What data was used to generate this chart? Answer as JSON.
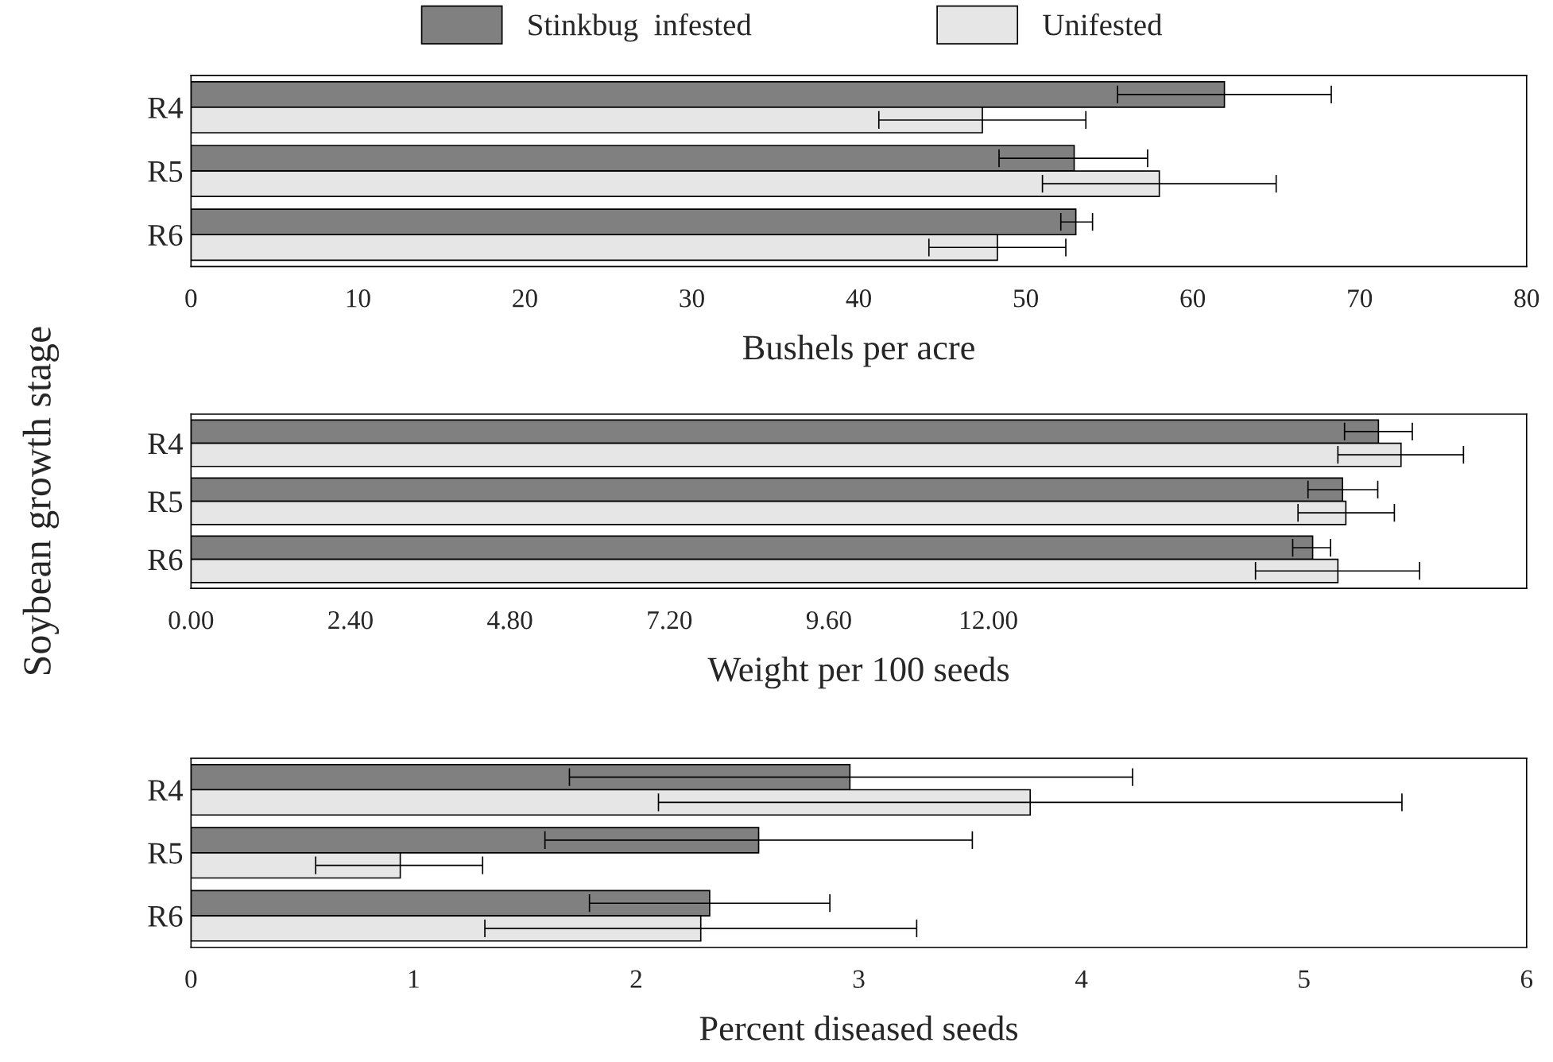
{
  "chart_data": [
    {
      "type": "bar",
      "orientation": "horizontal",
      "categories": [
        "R4",
        "R5",
        "R6"
      ],
      "xlabel": "Bushels per acre",
      "legend": "top",
      "xlim": [
        0,
        80
      ],
      "xticks": [
        0,
        10,
        20,
        30,
        40,
        50,
        60,
        70,
        80
      ],
      "series": [
        {
          "name": "Stinkbug  infested",
          "color": "#808080",
          "values": [
            61.9,
            52.9,
            53.0
          ],
          "errors": [
            [
              55.5,
              68.3
            ],
            [
              48.4,
              57.3
            ],
            [
              52.1,
              54.0
            ]
          ]
        },
        {
          "name": "Unifested",
          "color": "#e6e6e6",
          "values": [
            47.4,
            58.0,
            48.3
          ],
          "errors": [
            [
              41.2,
              53.6
            ],
            [
              51.0,
              65.0
            ],
            [
              44.2,
              52.4
            ]
          ]
        }
      ]
    },
    {
      "type": "bar",
      "orientation": "horizontal",
      "categories": [
        "R4",
        "R5",
        "R6"
      ],
      "xlabel": "Weight per 100 seeds",
      "ylabel": "Soybean growth stage",
      "xlim": [
        0,
        20.1
      ],
      "xticks": [
        {
          "value": 0,
          "label": "0.00"
        },
        {
          "value": 2.4,
          "label": "2.40"
        },
        {
          "value": 4.8,
          "label": "4.80"
        },
        {
          "value": 7.2,
          "label": "7.20"
        },
        {
          "value": 9.6,
          "label": "9.60"
        },
        {
          "value": 12,
          "label": "12.00"
        }
      ],
      "series": [
        {
          "color": "#808080",
          "values": [
            17.87,
            17.33,
            16.88
          ],
          "errors": [
            [
              17.36,
              18.38
            ],
            [
              16.81,
              17.86
            ],
            [
              16.58,
              17.15
            ]
          ]
        },
        {
          "color": "#e6e6e6",
          "values": [
            18.21,
            17.38,
            17.26
          ],
          "errors": [
            [
              17.26,
              19.15
            ],
            [
              16.66,
              18.11
            ],
            [
              16.02,
              18.49
            ]
          ]
        }
      ]
    },
    {
      "type": "bar",
      "orientation": "horizontal",
      "categories": [
        "R4",
        "R5",
        "R6"
      ],
      "xlabel": "Percent diseased seeds",
      "xlim": [
        0,
        6
      ],
      "xticks": [
        0,
        1,
        2,
        3,
        4,
        5,
        6
      ],
      "series": [
        {
          "color": "#808080",
          "values": [
            2.96,
            2.55,
            2.33
          ],
          "errors": [
            [
              1.7,
              4.23
            ],
            [
              1.59,
              3.51
            ],
            [
              1.79,
              2.87
            ]
          ]
        },
        {
          "color": "#e6e6e6",
          "values": [
            3.77,
            0.94,
            2.29
          ],
          "errors": [
            [
              2.1,
              5.44
            ],
            [
              0.56,
              1.31
            ],
            [
              1.32,
              3.26
            ]
          ]
        }
      ]
    }
  ]
}
